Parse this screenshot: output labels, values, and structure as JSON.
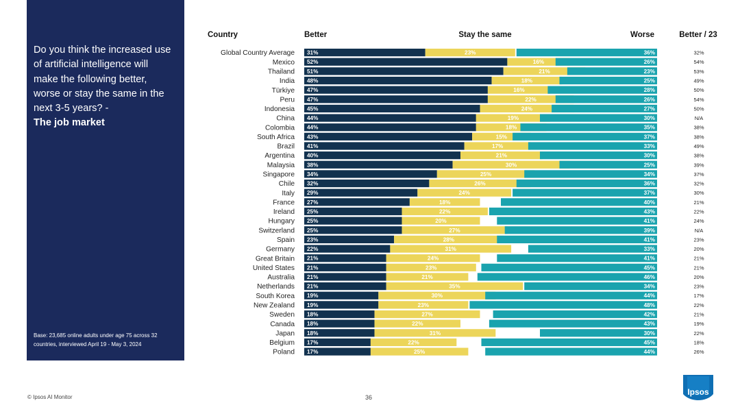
{
  "panel": {
    "question": "Do you think the increased use of artificial intelligence will make the following better, worse or stay the same in the next 3-5 years? -",
    "topic": "The job market",
    "base": "Base: 23,685 online adults under age 75 across 32 countries, interviewed April 19 - May 3, 2024"
  },
  "footer": {
    "copyright": "© Ipsos AI Monitor",
    "page_number": "36",
    "logo_text": "Ipsos"
  },
  "colors": {
    "panel": "#1b2a5c",
    "better": "#12324f",
    "same": "#ecd55a",
    "worse": "#1aa3ae"
  },
  "chart_data": {
    "type": "bar",
    "orientation": "horizontal",
    "stacked": "diverging",
    "headers": {
      "country": "Country",
      "better": "Better",
      "same": "Stay the same",
      "worse": "Worse",
      "better23": "Better / 23"
    },
    "categories": [
      "Global Country Average",
      "Mexico",
      "Thailand",
      "India",
      "Türkiye",
      "Peru",
      "Indonesia",
      "China",
      "Colombia",
      "South Africa",
      "Brazil",
      "Argentina",
      "Malaysia",
      "Singapore",
      "Chile",
      "Italy",
      "France",
      "Ireland",
      "Hungary",
      "Switzerland",
      "Spain",
      "Germany",
      "Great Britain",
      "United States",
      "Australia",
      "Netherlands",
      "South Korea",
      "New Zealand",
      "Sweden",
      "Canada",
      "Japan",
      "Belgium",
      "Poland"
    ],
    "series": [
      {
        "name": "Better",
        "values": [
          31,
          52,
          51,
          48,
          47,
          47,
          45,
          44,
          44,
          43,
          41,
          40,
          38,
          34,
          32,
          29,
          27,
          25,
          25,
          25,
          23,
          22,
          21,
          21,
          21,
          21,
          19,
          19,
          18,
          18,
          18,
          17,
          17
        ]
      },
      {
        "name": "Stay the same",
        "values": [
          23,
          16,
          21,
          18,
          16,
          22,
          24,
          19,
          18,
          15,
          17,
          21,
          30,
          25,
          26,
          24,
          18,
          22,
          20,
          27,
          28,
          31,
          24,
          23,
          21,
          35,
          30,
          23,
          27,
          22,
          31,
          22,
          25
        ]
      },
      {
        "name": "Worse",
        "values": [
          36,
          26,
          23,
          25,
          28,
          26,
          27,
          30,
          35,
          37,
          33,
          30,
          25,
          34,
          36,
          37,
          40,
          43,
          41,
          39,
          41,
          33,
          41,
          45,
          46,
          34,
          44,
          48,
          42,
          43,
          30,
          45,
          44
        ]
      }
    ],
    "better_2023": [
      "32%",
      "54%",
      "53%",
      "49%",
      "50%",
      "54%",
      "50%",
      "N/A",
      "38%",
      "38%",
      "49%",
      "38%",
      "39%",
      "37%",
      "32%",
      "30%",
      "21%",
      "22%",
      "24%",
      "N/A",
      "23%",
      "20%",
      "21%",
      "21%",
      "20%",
      "23%",
      "17%",
      "22%",
      "21%",
      "19%",
      "22%",
      "18%",
      "26%"
    ],
    "value_suffix": "%"
  }
}
